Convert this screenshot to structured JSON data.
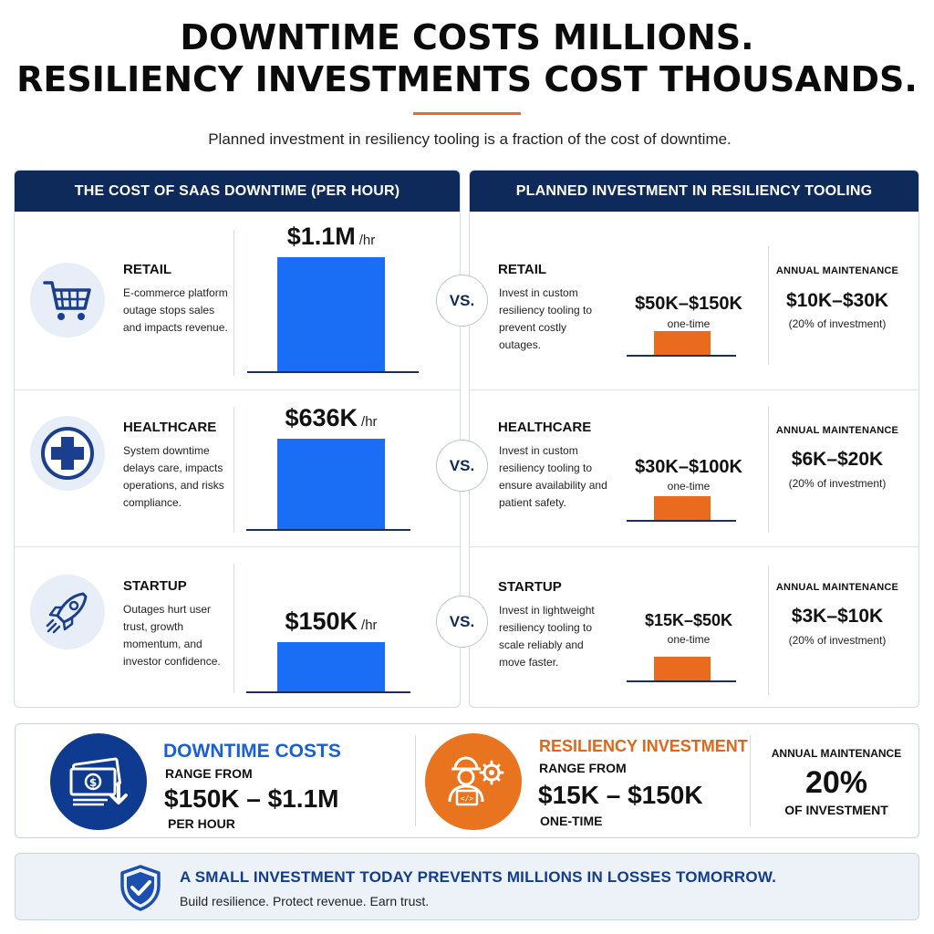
{
  "header": {
    "title_line1": "DOWNTIME COSTS MILLIONS.",
    "title_line2": "RESILIENCY INVESTMENTS COST THOUSANDS.",
    "subtitle": "Planned investment in resiliency tooling is a fraction of the cost of downtime."
  },
  "colors": {
    "navy": "#0e2a5a",
    "blue": "#1a6ef5",
    "orange": "#ea6b1e"
  },
  "left_panel": {
    "title": "THE COST OF SAAS DOWNTIME (PER HOUR)"
  },
  "right_panel": {
    "title": "PLANNED INVESTMENT IN RESILIENCY TOOLING"
  },
  "vs_label": "VS.",
  "chart_data": [
    {
      "type": "bar",
      "title": "THE COST OF SAAS DOWNTIME (PER HOUR)",
      "categories": [
        "RETAIL",
        "HEALTHCARE",
        "STARTUP"
      ],
      "values": [
        1100000,
        636000,
        150000
      ],
      "value_labels": [
        "$1.1M",
        "$636K",
        "$150K"
      ],
      "unit_label": "/hr",
      "descriptions": [
        "E-commerce platform outage stops sales and impacts revenue.",
        "System downtime delays care, impacts operations, and risks compliance.",
        "Outages hurt user trust, growth momentum, and investor confidence."
      ],
      "icons": [
        "shopping-cart-icon",
        "medical-cross-icon",
        "rocket-icon"
      ]
    },
    {
      "type": "bar",
      "title": "PLANNED INVESTMENT IN RESILIENCY TOOLING",
      "categories": [
        "RETAIL",
        "HEALTHCARE",
        "STARTUP"
      ],
      "ranges": [
        [
          50000,
          150000
        ],
        [
          30000,
          100000
        ],
        [
          15000,
          50000
        ]
      ],
      "value_labels": [
        "$50K–$150K",
        "$30K–$100K",
        "$15K–$50K"
      ],
      "sub_label": "one-time",
      "descriptions": [
        "Invest in custom resiliency tooling to prevent costly outages.",
        "Invest in custom resiliency tooling to ensure availability and patient safety.",
        "Invest in lightweight resiliency tooling to scale reliably and move faster."
      ],
      "annual_maintenance_label": "ANNUAL MAINTENANCE",
      "annual_maintenance": [
        "$10K–$30K",
        "$6K–$20K",
        "$3K–$10K"
      ],
      "annual_maintenance_note": "(20% of investment)"
    }
  ],
  "summary": {
    "downtime": {
      "title": "DOWNTIME COSTS",
      "range_from": "RANGE FROM",
      "range": "$150K – $1.1M",
      "per": "PER HOUR",
      "icon": "money-stack-down-icon"
    },
    "resiliency": {
      "title": "RESILIENCY INVESTMENT",
      "range_from": "RANGE FROM",
      "range": "$15K – $150K",
      "per": "ONE-TIME",
      "icon": "engineer-gear-icon"
    },
    "maintenance": {
      "label": "ANNUAL MAINTENANCE",
      "value": "20%",
      "sub": "OF INVESTMENT"
    }
  },
  "footer": {
    "headline": "A SMALL INVESTMENT TODAY PREVENTS MILLIONS IN LOSSES TOMORROW.",
    "tagline": "Build resilience. Protect revenue. Earn trust.",
    "icon": "shield-check-icon"
  }
}
